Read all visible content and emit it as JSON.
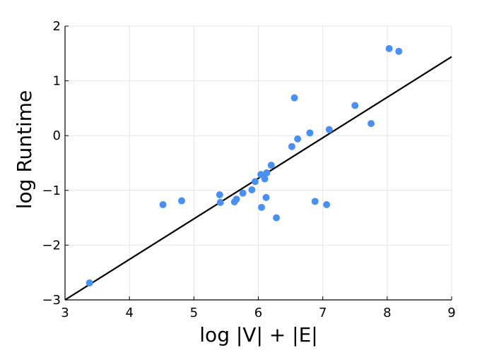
{
  "chart_data": {
    "type": "scatter",
    "title": "",
    "xlabel": "log |V| + |E|",
    "ylabel": "log Runtime",
    "xlim": [
      3,
      9
    ],
    "ylim": [
      -3,
      2
    ],
    "grid": true,
    "xticks": [
      3,
      4,
      5,
      6,
      7,
      8,
      9
    ],
    "yticks": [
      -3,
      -2,
      -1,
      0,
      1,
      2
    ],
    "xtick_labels": [
      "3",
      "4",
      "5",
      "6",
      "7",
      "8",
      "9"
    ],
    "ytick_labels": [
      "−3",
      "−2",
      "−1",
      "0",
      "1",
      "2"
    ],
    "point_color": "#4a90f0",
    "line_color": "#000000",
    "fit_line": {
      "x": [
        3,
        9
      ],
      "y": [
        -3,
        1.44
      ]
    },
    "points": [
      {
        "x": 3.38,
        "y": -2.69
      },
      {
        "x": 4.52,
        "y": -1.26
      },
      {
        "x": 4.81,
        "y": -1.19
      },
      {
        "x": 5.4,
        "y": -1.08
      },
      {
        "x": 5.41,
        "y": -1.22
      },
      {
        "x": 5.63,
        "y": -1.21
      },
      {
        "x": 5.66,
        "y": -1.16
      },
      {
        "x": 5.76,
        "y": -1.05
      },
      {
        "x": 5.9,
        "y": -0.99
      },
      {
        "x": 5.95,
        "y": -0.84
      },
      {
        "x": 6.04,
        "y": -0.71
      },
      {
        "x": 6.05,
        "y": -1.31
      },
      {
        "x": 6.1,
        "y": -0.79
      },
      {
        "x": 6.13,
        "y": -0.68
      },
      {
        "x": 6.12,
        "y": -1.13
      },
      {
        "x": 6.2,
        "y": -0.54
      },
      {
        "x": 6.28,
        "y": -1.5
      },
      {
        "x": 6.52,
        "y": -0.2
      },
      {
        "x": 6.56,
        "y": 0.69
      },
      {
        "x": 6.61,
        "y": -0.06
      },
      {
        "x": 6.8,
        "y": 0.05
      },
      {
        "x": 6.88,
        "y": -1.2
      },
      {
        "x": 7.06,
        "y": -1.26
      },
      {
        "x": 7.1,
        "y": 0.11
      },
      {
        "x": 7.5,
        "y": 0.55
      },
      {
        "x": 7.75,
        "y": 0.22
      },
      {
        "x": 8.03,
        "y": 1.59
      },
      {
        "x": 8.18,
        "y": 1.54
      }
    ]
  }
}
